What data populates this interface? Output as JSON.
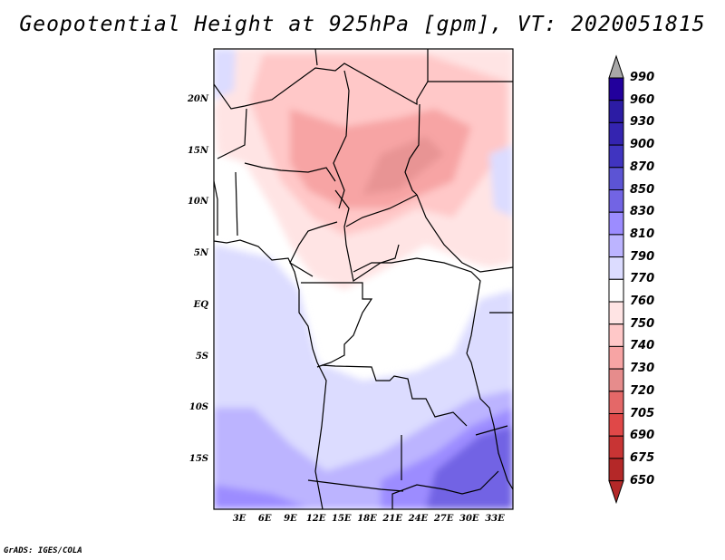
{
  "title": "Geopotential Height at 925hPa [gpm], VT: 2020051815",
  "credit": "GrADS: IGES/COLA",
  "map": {
    "lat_labels": [
      "20N",
      "15N",
      "10N",
      "5N",
      "EQ",
      "5S",
      "10S",
      "15S"
    ],
    "lon_labels": [
      "3E",
      "6E",
      "9E",
      "12E",
      "15E",
      "18E",
      "21E",
      "24E",
      "27E",
      "30E",
      "33E"
    ]
  },
  "colorbar": {
    "labels": [
      "990",
      "960",
      "930",
      "900",
      "870",
      "850",
      "830",
      "810",
      "790",
      "770",
      "760",
      "750",
      "740",
      "730",
      "720",
      "705",
      "690",
      "675",
      "650"
    ],
    "colors": [
      "#22009c",
      "#2c1ca4",
      "#3424b0",
      "#4034c0",
      "#5c54d4",
      "#7264e4",
      "#9c8cff",
      "#bcb4ff",
      "#dcdcff",
      "#ffffff",
      "#ffe4e4",
      "#ffc8c8",
      "#f7a4a4",
      "#e68c8c",
      "#e46868",
      "#e04848",
      "#c83434",
      "#b42828"
    ],
    "over_color": "#a8a8a8",
    "under_color": "#b42828"
  }
}
